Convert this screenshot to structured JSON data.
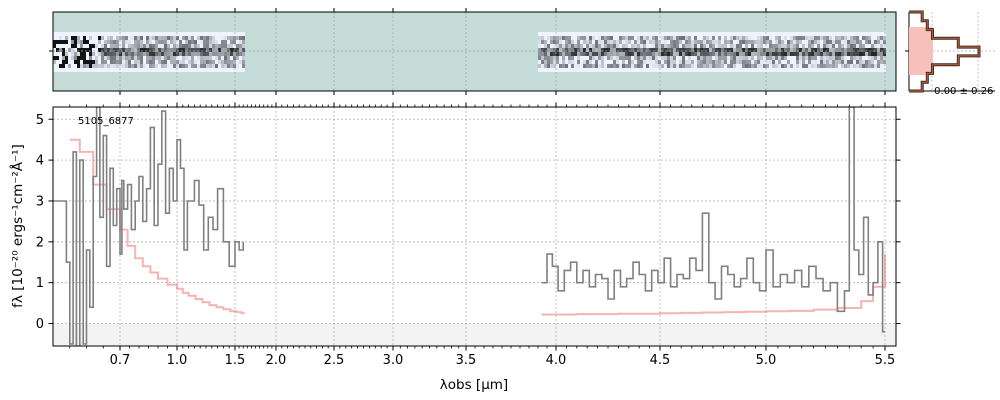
{
  "chart_data": [
    {
      "panel": "spectrum-2d",
      "type": "heatmap",
      "colormap": "bone_r",
      "background_color": "#c5dbd8",
      "segments_um": [
        [
          0.5,
          1.62
        ],
        [
          3.9,
          5.5
        ]
      ]
    },
    {
      "panel": "spectrum-1d",
      "type": "line",
      "object_label": "5105_6877",
      "xlabel": "λobs [μm]",
      "ylabel": "fλ [10⁻²⁰ ergs⁻¹cm⁻²Å⁻¹]",
      "xlim": [
        0.5,
        5.52
      ],
      "ylim": [
        -0.55,
        5.3
      ],
      "x_axis_scale": "nonlinear (prism resolution)",
      "x_tick_labels": [
        "0.7",
        "1.0",
        "1.5",
        "2.0",
        "2.5",
        "3.0",
        "3.5",
        "4.0",
        "4.5",
        "5.0",
        "5.5"
      ],
      "x_tick_values": [
        0.7,
        1.0,
        1.5,
        2.0,
        2.5,
        3.0,
        3.5,
        4.0,
        4.5,
        5.0,
        5.5
      ],
      "y_tick_labels": [
        "0",
        "1",
        "2",
        "3",
        "4",
        "5"
      ],
      "y_tick_values": [
        0,
        1,
        2,
        3,
        4,
        5
      ],
      "grid": true,
      "series": [
        {
          "role": "flux",
          "color": "#808080",
          "segments": [
            {
              "x": [
                0.5,
                0.52,
                0.54,
                0.55,
                0.56,
                0.57,
                0.58,
                0.59,
                0.6,
                0.61,
                0.62,
                0.63,
                0.64,
                0.65,
                0.66,
                0.67,
                0.68,
                0.69,
                0.7,
                0.71,
                0.72,
                0.74,
                0.76,
                0.78,
                0.8,
                0.82,
                0.84,
                0.86,
                0.88,
                0.9,
                0.92,
                0.94,
                0.96,
                0.98,
                1.0,
                1.03,
                1.06,
                1.09,
                1.12,
                1.15,
                1.19,
                1.23,
                1.27,
                1.31,
                1.35,
                1.4,
                1.45,
                1.5,
                1.55,
                1.6
              ],
              "y": [
                3.0,
                3.0,
                1.5,
                -0.5,
                4.2,
                -0.6,
                4.0,
                -0.5,
                1.8,
                0.4,
                3.6,
                5.3,
                2.6,
                4.6,
                1.4,
                3.8,
                2.4,
                3.3,
                1.7,
                3.5,
                2.8,
                3.4,
                2.3,
                3.0,
                3.6,
                2.5,
                3.3,
                4.8,
                2.4,
                3.9,
                5.2,
                2.7,
                3.8,
                3.0,
                4.5,
                3.8,
                1.8,
                3.0,
                3.0,
                3.5,
                2.9,
                1.8,
                2.6,
                2.3,
                3.3,
                2.0,
                1.4,
                2.0,
                1.8,
                2.0
              ]
            },
            {
              "x": [
                3.92,
                3.95,
                3.98,
                4.01,
                4.04,
                4.07,
                4.1,
                4.13,
                4.16,
                4.19,
                4.22,
                4.25,
                4.28,
                4.31,
                4.34,
                4.37,
                4.4,
                4.43,
                4.46,
                4.49,
                4.52,
                4.55,
                4.58,
                4.61,
                4.64,
                4.67,
                4.7,
                4.73,
                4.76,
                4.79,
                4.82,
                4.85,
                4.88,
                4.91,
                4.94,
                4.97,
                5.0,
                5.03,
                5.06,
                5.09,
                5.12,
                5.15,
                5.18,
                5.21,
                5.24,
                5.27,
                5.3,
                5.33,
                5.35,
                5.37,
                5.39,
                5.41,
                5.43,
                5.45,
                5.47,
                5.49,
                5.5
              ],
              "y": [
                1.0,
                1.7,
                1.4,
                0.8,
                1.3,
                1.5,
                1.0,
                1.3,
                0.9,
                1.2,
                1.1,
                0.6,
                1.3,
                0.9,
                1.1,
                1.5,
                1.2,
                0.8,
                1.3,
                1.0,
                1.6,
                0.9,
                1.2,
                1.1,
                1.6,
                1.3,
                2.7,
                1.0,
                0.6,
                1.4,
                1.2,
                0.9,
                1.1,
                1.6,
                1.0,
                0.8,
                1.8,
                0.9,
                1.2,
                1.0,
                1.3,
                0.9,
                1.4,
                1.1,
                0.8,
                1.0,
                0.3,
                0.8,
                5.3,
                1.8,
                1.2,
                2.6,
                0.7,
                1.0,
                2.0,
                -0.2,
                -0.2
              ]
            }
          ]
        },
        {
          "role": "model",
          "color": "#f08080",
          "segments": [
            {
              "x": [
                0.55,
                0.58,
                0.62,
                0.66,
                0.7,
                0.74,
                0.78,
                0.82,
                0.86,
                0.9,
                0.95,
                1.0,
                1.05,
                1.1,
                1.16,
                1.22,
                1.28,
                1.34,
                1.4,
                1.46,
                1.52,
                1.58,
                1.62
              ],
              "y": [
                4.5,
                4.2,
                3.4,
                2.8,
                2.3,
                1.9,
                1.6,
                1.4,
                1.25,
                1.1,
                0.95,
                0.85,
                0.75,
                0.68,
                0.6,
                0.52,
                0.45,
                0.4,
                0.35,
                0.3,
                0.28,
                0.25,
                0.25
              ]
            },
            {
              "x": [
                3.92,
                4.0,
                4.1,
                4.2,
                4.3,
                4.4,
                4.5,
                4.6,
                4.7,
                4.8,
                4.9,
                5.0,
                5.1,
                5.2,
                5.3,
                5.4,
                5.45,
                5.5
              ],
              "y": [
                0.22,
                0.22,
                0.23,
                0.23,
                0.24,
                0.24,
                0.25,
                0.26,
                0.27,
                0.28,
                0.29,
                0.3,
                0.31,
                0.34,
                0.38,
                0.55,
                0.9,
                1.7
              ]
            }
          ]
        }
      ]
    },
    {
      "panel": "residual-histogram",
      "type": "bar",
      "summary_label": "-0.00 ± 0.26",
      "bins": [
        -1.0,
        -0.75,
        -0.5,
        -0.25,
        0,
        0.25,
        0.5,
        0.75,
        1.0
      ],
      "counts": [
        1,
        2,
        3,
        8,
        12,
        8,
        3,
        2,
        1
      ]
    }
  ]
}
